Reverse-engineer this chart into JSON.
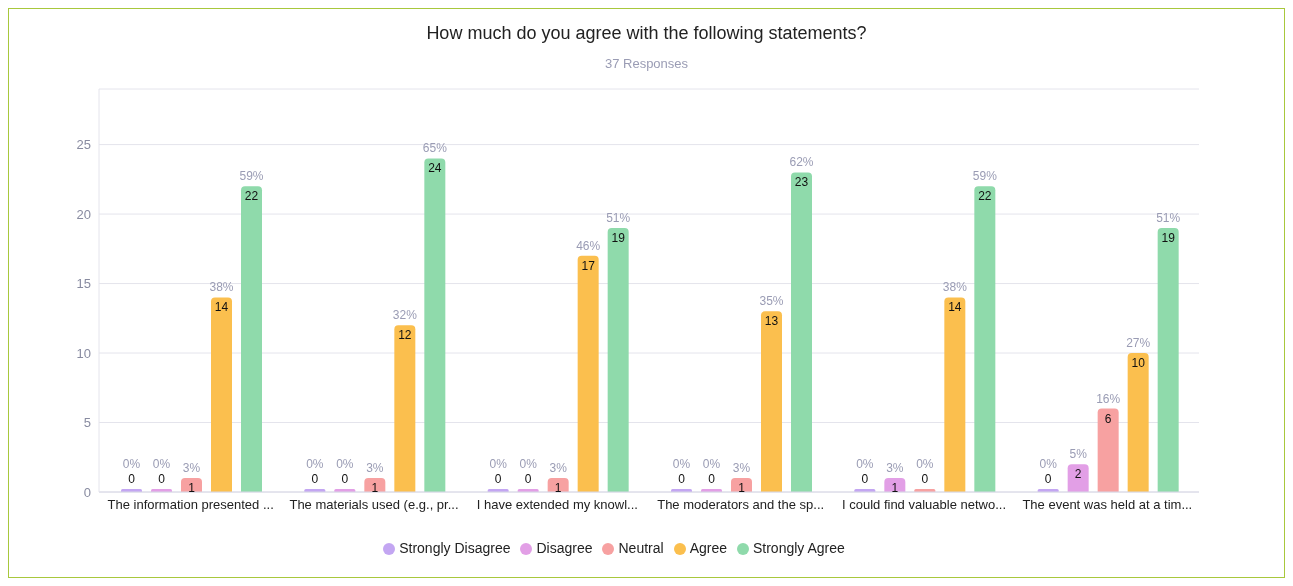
{
  "chart_data": {
    "type": "bar",
    "title": "How much do you agree with the following statements?",
    "subtitle": "37 Responses",
    "categories": [
      "The information presented ...",
      "The materials used (e.g., pr...",
      "I have extended my knowl...",
      "The moderators and the sp...",
      "I could find valuable netwo...",
      "The event was held at a tim..."
    ],
    "series": [
      {
        "name": "Strongly Disagree",
        "color": "#c3a6f2",
        "values": [
          0,
          0,
          0,
          0,
          0,
          0
        ]
      },
      {
        "name": "Disagree",
        "color": "#e29fe6",
        "values": [
          0,
          0,
          0,
          0,
          1,
          2
        ]
      },
      {
        "name": "Neutral",
        "color": "#f7a1a1",
        "values": [
          1,
          1,
          1,
          1,
          0,
          6
        ]
      },
      {
        "name": "Agree",
        "color": "#fbbf4e",
        "values": [
          14,
          12,
          17,
          13,
          14,
          10
        ]
      },
      {
        "name": "Strongly Agree",
        "color": "#8fdaab",
        "values": [
          22,
          24,
          19,
          23,
          22,
          19
        ]
      }
    ],
    "annotations": [
      "0%",
      "0%",
      "0%",
      "0%",
      "0%",
      "0%",
      "0%",
      "0%",
      "0%",
      "0%",
      "3%",
      "5%",
      "3%",
      "3%",
      "3%",
      "3%",
      "0%",
      "16%",
      "38%",
      "32%",
      "46%",
      "35%",
      "38%",
      "27%",
      "59%",
      "65%",
      "51%",
      "62%",
      "59%",
      "51%"
    ],
    "ylim": [
      0,
      29
    ],
    "yticks": [
      0,
      5,
      10,
      15,
      20,
      25
    ],
    "grid": "y",
    "legend": "bottom",
    "data_labels": true
  }
}
